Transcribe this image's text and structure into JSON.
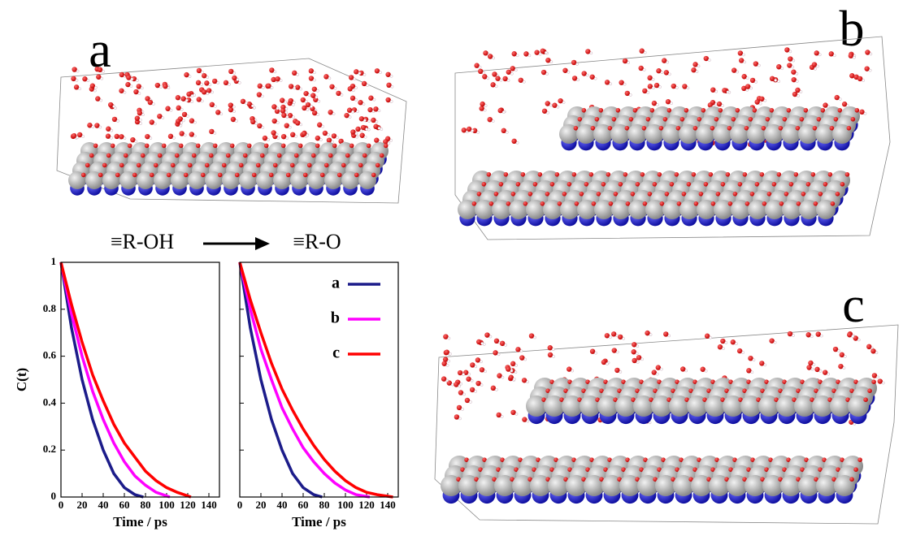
{
  "panels": [
    {
      "label": "a"
    },
    {
      "label": "b"
    },
    {
      "label": "c"
    }
  ],
  "chart_data": [
    {
      "type": "line",
      "title": "≡R-OH",
      "xlabel": "Time / ps",
      "ylabel": "C(t)",
      "xlim": [
        0,
        150
      ],
      "ylim": [
        0,
        1
      ],
      "xticks": [
        0,
        20,
        40,
        60,
        80,
        100,
        120,
        140
      ],
      "yticks": [
        0,
        0.2,
        0.4,
        0.6,
        0.8,
        1
      ],
      "ytick_labels": true,
      "series": [
        {
          "color": "#1c1c8a",
          "x": [
            0,
            10,
            20,
            30,
            40,
            50,
            60,
            70,
            78
          ],
          "values": [
            1,
            0.72,
            0.5,
            0.33,
            0.2,
            0.1,
            0.04,
            0.01,
            0
          ]
        },
        {
          "color": "#ff00ff",
          "x": [
            0,
            10,
            20,
            30,
            40,
            50,
            60,
            70,
            80,
            90,
            103
          ],
          "values": [
            1,
            0.78,
            0.6,
            0.45,
            0.33,
            0.23,
            0.15,
            0.09,
            0.05,
            0.02,
            0
          ]
        },
        {
          "color": "#ff0000",
          "x": [
            0,
            10,
            20,
            30,
            40,
            50,
            60,
            70,
            80,
            90,
            100,
            110,
            123
          ],
          "values": [
            1,
            0.82,
            0.66,
            0.52,
            0.41,
            0.31,
            0.23,
            0.17,
            0.11,
            0.07,
            0.04,
            0.02,
            0
          ]
        }
      ]
    },
    {
      "type": "line",
      "title": "≡R-O",
      "xlabel": "Time / ps",
      "xlim": [
        0,
        150
      ],
      "ylim": [
        0,
        1
      ],
      "xticks": [
        0,
        20,
        40,
        60,
        80,
        100,
        120,
        140
      ],
      "yticks": [
        0,
        0.2,
        0.4,
        0.6,
        0.8,
        1
      ],
      "ytick_labels": false,
      "legend": "upper right",
      "series": [
        {
          "name": "a",
          "color": "#1c1c8a",
          "x": [
            0,
            10,
            20,
            30,
            40,
            50,
            60,
            70,
            78
          ],
          "values": [
            1,
            0.72,
            0.5,
            0.33,
            0.2,
            0.1,
            0.04,
            0.01,
            0
          ]
        },
        {
          "name": "b",
          "color": "#ff00ff",
          "x": [
            0,
            10,
            20,
            30,
            40,
            50,
            60,
            70,
            80,
            90,
            100,
            110,
            123
          ],
          "values": [
            1,
            0.8,
            0.63,
            0.5,
            0.38,
            0.29,
            0.21,
            0.15,
            0.1,
            0.06,
            0.03,
            0.01,
            0
          ]
        },
        {
          "name": "c",
          "color": "#ff0000",
          "x": [
            0,
            10,
            20,
            30,
            40,
            50,
            60,
            70,
            80,
            90,
            100,
            110,
            120,
            130,
            145
          ],
          "values": [
            1,
            0.84,
            0.7,
            0.57,
            0.46,
            0.37,
            0.29,
            0.22,
            0.16,
            0.11,
            0.07,
            0.04,
            0.02,
            0.01,
            0
          ]
        }
      ]
    }
  ]
}
